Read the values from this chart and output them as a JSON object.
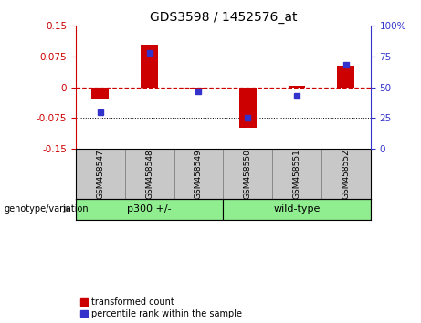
{
  "title": "GDS3598 / 1452576_at",
  "samples": [
    "GSM458547",
    "GSM458548",
    "GSM458549",
    "GSM458550",
    "GSM458551",
    "GSM458552"
  ],
  "red_values": [
    -0.028,
    0.103,
    -0.006,
    -0.098,
    0.004,
    0.052
  ],
  "blue_values_pct": [
    30,
    78,
    47,
    25,
    43,
    68
  ],
  "group1_label": "p300 +/-",
  "group2_label": "wild-type",
  "group_boundary": 3,
  "group_color": "#90EE90",
  "ylim_left": [
    -0.15,
    0.15
  ],
  "ylim_right": [
    0,
    100
  ],
  "yticks_left": [
    -0.15,
    -0.075,
    0,
    0.075,
    0.15
  ],
  "yticks_right": [
    0,
    25,
    50,
    75,
    100
  ],
  "red_color": "#CC0000",
  "blue_color": "#3333CC",
  "hline_color": "#CC0000",
  "bar_width": 0.35,
  "marker_size": 5,
  "legend_items": [
    "transformed count",
    "percentile rank within the sample"
  ],
  "genotype_label": "genotype/variation",
  "label_bg": "#C8C8C8",
  "label_sep_color": "#888888",
  "title_fontsize": 10,
  "tick_fontsize": 7.5,
  "sample_fontsize": 6.5,
  "group_fontsize": 8,
  "legend_fontsize": 7,
  "genotype_fontsize": 7
}
